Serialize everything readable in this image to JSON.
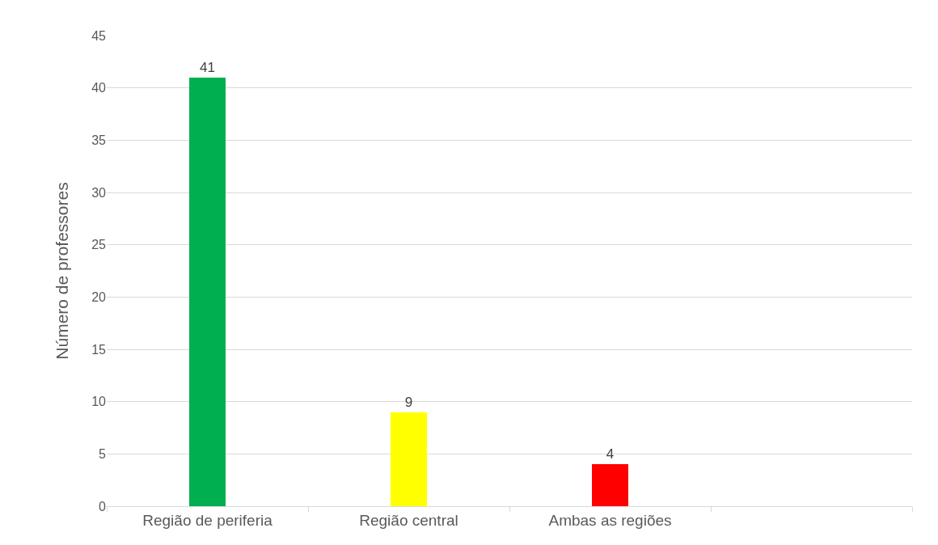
{
  "chart_data": {
    "type": "bar",
    "ylabel": "Número de professores",
    "categories": [
      "Região de periferia",
      "Região central",
      "Ambas as regiões",
      null
    ],
    "colors": [
      "#00b050",
      "#ffff00",
      "#ff0000",
      "#ffffff"
    ],
    "values": [
      41,
      9,
      4,
      null
    ],
    "ylim": [
      0,
      45
    ],
    "yticks": [
      0,
      5,
      10,
      15,
      20,
      25,
      30,
      35,
      40,
      45
    ],
    "grid": "y",
    "data_labels": true
  }
}
